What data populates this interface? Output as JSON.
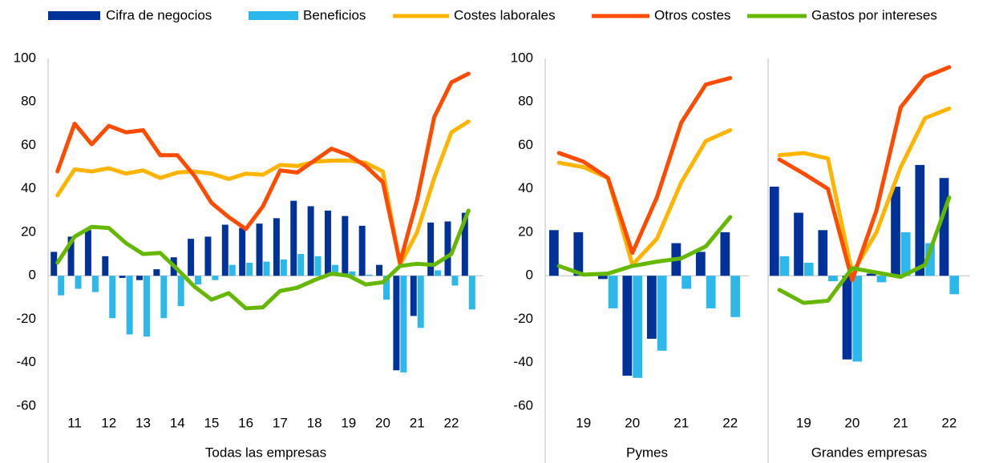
{
  "chart_data": [
    {
      "type": "bar",
      "xlabel": "Todas las empresas",
      "categories": [
        null,
        "11",
        null,
        "12",
        null,
        "13",
        null,
        "14",
        null,
        "15",
        null,
        "16",
        null,
        "17",
        null,
        "18",
        null,
        "19",
        null,
        "20",
        null,
        "21",
        null,
        "22",
        null
      ],
      "ylim": [
        -60,
        100
      ],
      "yticks": [
        -60,
        -40,
        -20,
        0,
        20,
        40,
        60,
        80,
        100
      ],
      "series": [
        {
          "name": "Cifra de negocios",
          "type": "bar",
          "color": "#003299",
          "values": [
            11,
            18,
            21,
            9,
            -1,
            -2,
            3,
            8.5,
            17,
            18,
            23.5,
            22,
            24,
            26.5,
            34.5,
            32,
            30,
            27.5,
            23,
            5,
            -43.5,
            -18.5,
            24.5,
            25,
            29
          ]
        },
        {
          "name": "Beneficios",
          "type": "bar",
          "color": "#2cb8ea",
          "values": [
            -9,
            -6,
            -7.5,
            -19.5,
            -27,
            -28,
            -19.5,
            -14,
            -4,
            -2,
            5,
            6,
            6.5,
            7.5,
            10,
            9,
            5,
            2,
            0.5,
            -11,
            -44.5,
            -24,
            2.5,
            -4.5,
            -15.5
          ]
        },
        {
          "name": "Costes laborales",
          "type": "line",
          "color": "#ffb400",
          "values": [
            37,
            49,
            48,
            49.5,
            47,
            48.5,
            45,
            47.5,
            48,
            47,
            44.5,
            47,
            46.5,
            51,
            50.5,
            52.5,
            53,
            53,
            52,
            48,
            5,
            20,
            45,
            66,
            71
          ]
        },
        {
          "name": "Otros costes",
          "type": "line",
          "color": "#ff4b00",
          "values": [
            48,
            70,
            60.5,
            69,
            66,
            67,
            55.5,
            55.5,
            46,
            33.5,
            27,
            21.5,
            32,
            48.5,
            47.5,
            53,
            58.5,
            55.5,
            50.5,
            43,
            6,
            35,
            73,
            89,
            93
          ]
        },
        {
          "name": "Gastos por intereses",
          "type": "line",
          "color": "#65b800",
          "values": [
            6,
            18,
            22.5,
            22,
            15,
            10,
            10.5,
            3,
            -5,
            -11,
            -8,
            -15,
            -14.5,
            -7,
            -5.5,
            -2,
            1,
            0,
            -4,
            -3,
            4.5,
            5.5,
            5,
            10,
            30
          ]
        }
      ]
    },
    {
      "type": "bar",
      "xlabel": "Pymes",
      "categories": [
        null,
        "19",
        null,
        "20",
        null,
        "21",
        null,
        "22"
      ],
      "ylim": [
        -60,
        100
      ],
      "yticks": [
        -60,
        -40,
        -20,
        0,
        20,
        40,
        60,
        80,
        100
      ],
      "series": [
        {
          "name": "Cifra de negocios",
          "type": "bar",
          "color": "#003299",
          "values": [
            21,
            20,
            -1.5,
            -46,
            -29,
            15,
            11,
            20
          ]
        },
        {
          "name": "Beneficios",
          "type": "bar",
          "color": "#2cb8ea",
          "values": [
            0,
            0,
            -15,
            -47,
            -34.5,
            -6,
            -15,
            -19
          ]
        },
        {
          "name": "Costes laborales",
          "type": "line",
          "color": "#ffb400",
          "values": [
            52,
            50,
            45,
            5,
            17,
            43,
            62,
            67
          ]
        },
        {
          "name": "Otros costes",
          "type": "line",
          "color": "#ff4b00",
          "values": [
            56.5,
            52.5,
            45,
            10.5,
            36,
            70.5,
            88,
            91
          ]
        },
        {
          "name": "Gastos por intereses",
          "type": "line",
          "color": "#65b800",
          "values": [
            4.5,
            0.5,
            1,
            4.5,
            6.5,
            8,
            13.5,
            27
          ]
        }
      ]
    },
    {
      "type": "bar",
      "xlabel": "Grandes empresas",
      "categories": [
        null,
        "19",
        null,
        "20",
        null,
        "21",
        null,
        "22"
      ],
      "ylim": [
        -60,
        100
      ],
      "series": [
        {
          "name": "Cifra de negocios",
          "type": "bar",
          "color": "#003299",
          "values": [
            41,
            29,
            21,
            -38.5,
            1,
            41,
            51,
            45
          ]
        },
        {
          "name": "Beneficios",
          "type": "bar",
          "color": "#2cb8ea",
          "values": [
            9,
            6,
            -2.5,
            -39.5,
            -3,
            20,
            15,
            -8.5
          ]
        },
        {
          "name": "Costes laborales",
          "type": "line",
          "color": "#ffb400",
          "values": [
            55.5,
            56.5,
            54,
            1,
            20,
            50,
            72.5,
            77
          ]
        },
        {
          "name": "Otros costes",
          "type": "line",
          "color": "#ff4b00",
          "values": [
            53.5,
            47,
            40,
            -2,
            30,
            77.5,
            91.5,
            96
          ]
        },
        {
          "name": "Gastos por intereses",
          "type": "line",
          "color": "#65b800",
          "values": [
            -6.5,
            -12.5,
            -11.5,
            3.5,
            1.5,
            -0.5,
            5,
            36
          ]
        }
      ]
    }
  ]
}
